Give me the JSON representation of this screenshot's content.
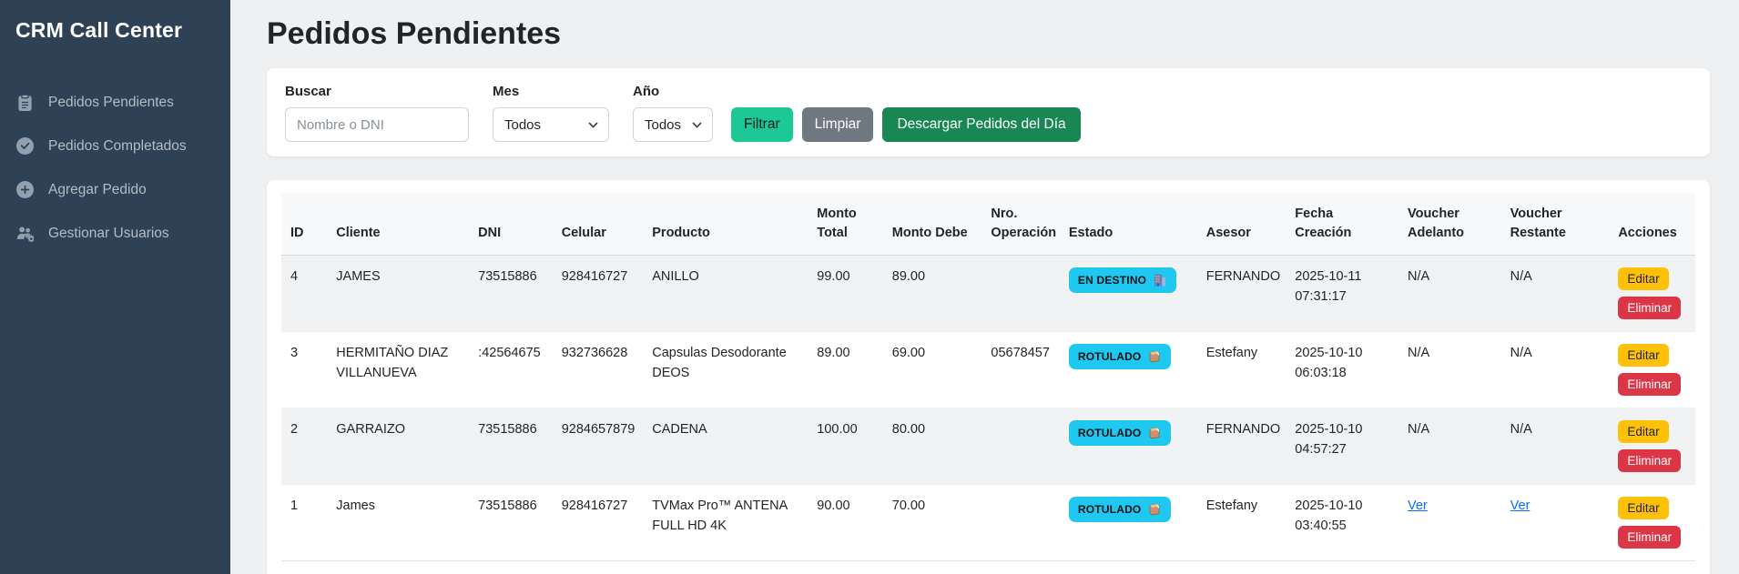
{
  "sidebar": {
    "title": "CRM Call Center",
    "items": [
      {
        "label": "Pedidos Pendientes",
        "icon": "clipboard-icon"
      },
      {
        "label": "Pedidos Completados",
        "icon": "check-circle-icon"
      },
      {
        "label": "Agregar Pedido",
        "icon": "plus-circle-icon"
      },
      {
        "label": "Gestionar Usuarios",
        "icon": "users-gear-icon"
      }
    ]
  },
  "page": {
    "title": "Pedidos Pendientes"
  },
  "filters": {
    "search_label": "Buscar",
    "search_placeholder": "Nombre o DNI",
    "month_label": "Mes",
    "month_value": "Todos",
    "year_label": "Año",
    "year_value": "Todos",
    "filter_button": "Filtrar",
    "clear_button": "Limpiar",
    "download_button": "Descargar Pedidos del Día"
  },
  "table": {
    "headers": [
      "ID",
      "Cliente",
      "DNI",
      "Celular",
      "Producto",
      "Monto Total",
      "Monto Debe",
      "Nro. Operación",
      "Estado",
      "Asesor",
      "Fecha Creación",
      "Voucher Adelanto",
      "Voucher Restante",
      "Acciones"
    ],
    "actions": {
      "edit": "Editar",
      "delete": "Eliminar"
    },
    "rows": [
      {
        "id": "4",
        "cliente": "JAMES",
        "dni": "73515886",
        "celular": "928416727",
        "producto": "ANILLO",
        "monto_total": "99.00",
        "monto_debe": "89.00",
        "nro_operacion": "",
        "estado": {
          "label": "EN DESTINO",
          "icon": "building-icon"
        },
        "asesor": "FERNANDO",
        "fecha_creacion": "2025-10-11 07:31:17",
        "voucher_adelanto": {
          "label": "N/A",
          "is_link": false
        },
        "voucher_restante": {
          "label": "N/A",
          "is_link": false
        }
      },
      {
        "id": "3",
        "cliente": "HERMITAÑO DIAZ VILLANUEVA",
        "dni": ":42564675",
        "celular": "932736628",
        "producto": "Capsulas Desodorante DEOS",
        "monto_total": "89.00",
        "monto_debe": "69.00",
        "nro_operacion": "05678457",
        "estado": {
          "label": "ROTULADO",
          "icon": "package-icon"
        },
        "asesor": "Estefany",
        "fecha_creacion": "2025-10-10 06:03:18",
        "voucher_adelanto": {
          "label": "N/A",
          "is_link": false
        },
        "voucher_restante": {
          "label": "N/A",
          "is_link": false
        }
      },
      {
        "id": "2",
        "cliente": "GARRAIZO",
        "dni": "73515886",
        "celular": "9284657879",
        "producto": "CADENA",
        "monto_total": "100.00",
        "monto_debe": "80.00",
        "nro_operacion": "",
        "estado": {
          "label": "ROTULADO",
          "icon": "package-icon"
        },
        "asesor": "FERNANDO",
        "fecha_creacion": "2025-10-10 04:57:27",
        "voucher_adelanto": {
          "label": "N/A",
          "is_link": false
        },
        "voucher_restante": {
          "label": "N/A",
          "is_link": false
        }
      },
      {
        "id": "1",
        "cliente": "James",
        "dni": "73515886",
        "celular": "928416727",
        "producto": "TVMax Pro™ ANTENA FULL HD 4K",
        "monto_total": "90.00",
        "monto_debe": "70.00",
        "nro_operacion": "",
        "estado": {
          "label": "ROTULADO",
          "icon": "package-icon"
        },
        "asesor": "Estefany",
        "fecha_creacion": "2025-10-10 03:40:55",
        "voucher_adelanto": {
          "label": "Ver",
          "is_link": true
        },
        "voucher_restante": {
          "label": "Ver",
          "is_link": true
        }
      }
    ]
  },
  "colors": {
    "sidebar_bg": "#2f4154",
    "filter_button_teal": "#1cc996",
    "clear_button_gray": "#6f7780",
    "download_button_green": "#198754",
    "status_badge_cyan": "#1fc8f0",
    "edit_button_yellow": "#ffc107",
    "delete_button_red": "#dc3545",
    "link_blue": "#0d6efd"
  }
}
